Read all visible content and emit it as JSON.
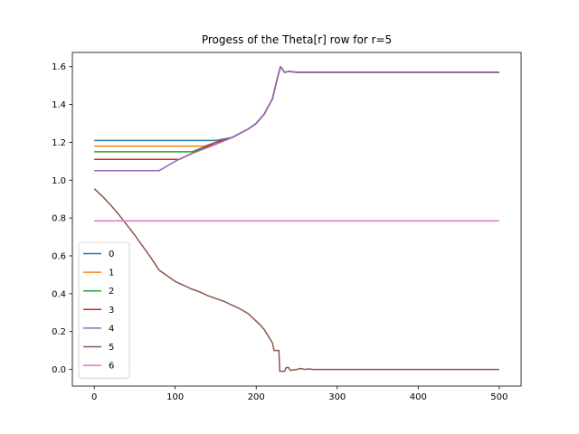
{
  "chart_data": {
    "type": "line",
    "title": "Progess of the Theta[r] row for r=5",
    "xlabel": "",
    "ylabel": "",
    "xlim": [
      -27,
      527
    ],
    "ylim": [
      -0.088,
      1.675
    ],
    "xticks": [
      0,
      100,
      200,
      300,
      400,
      500
    ],
    "yticks": [
      0.0,
      0.2,
      0.4,
      0.6,
      0.8,
      1.0,
      1.2,
      1.4,
      1.6
    ],
    "xtick_labels": [
      "0",
      "100",
      "200",
      "300",
      "400",
      "500"
    ],
    "ytick_labels": [
      "0.0",
      "0.2",
      "0.4",
      "0.6",
      "0.8",
      "1.0",
      "1.2",
      "1.4",
      "1.6"
    ],
    "grid": false,
    "legend_position": "lower-left",
    "series": [
      {
        "name": "0",
        "color": "#1f77b4",
        "x": [
          0,
          150,
          170,
          190,
          200,
          210,
          220,
          225,
          228,
          230,
          235,
          240,
          250,
          260,
          300,
          500
        ],
        "y": [
          1.21,
          1.21,
          1.225,
          1.27,
          1.3,
          1.35,
          1.43,
          1.52,
          1.57,
          1.6,
          1.57,
          1.575,
          1.57,
          1.57,
          1.57,
          1.57
        ]
      },
      {
        "name": "1",
        "color": "#ff7f0e",
        "x": [
          0,
          136,
          150,
          170,
          190,
          200,
          210,
          220,
          225,
          228,
          230,
          235,
          240,
          250,
          260,
          300,
          500
        ],
        "y": [
          1.18,
          1.18,
          1.2,
          1.225,
          1.27,
          1.3,
          1.35,
          1.43,
          1.52,
          1.57,
          1.6,
          1.57,
          1.575,
          1.57,
          1.57,
          1.57,
          1.57
        ]
      },
      {
        "name": "2",
        "color": "#2ca02c",
        "x": [
          0,
          121,
          150,
          170,
          190,
          200,
          210,
          220,
          225,
          228,
          230,
          235,
          240,
          250,
          260,
          300,
          500
        ],
        "y": [
          1.15,
          1.15,
          1.2,
          1.225,
          1.27,
          1.3,
          1.35,
          1.43,
          1.52,
          1.57,
          1.6,
          1.57,
          1.575,
          1.57,
          1.57,
          1.57,
          1.57
        ]
      },
      {
        "name": "3",
        "color": "#d62728",
        "x": [
          0,
          105,
          120,
          150,
          170,
          190,
          200,
          210,
          220,
          225,
          228,
          230,
          235,
          240,
          250,
          260,
          300,
          500
        ],
        "y": [
          1.11,
          1.11,
          1.14,
          1.2,
          1.225,
          1.27,
          1.3,
          1.35,
          1.43,
          1.52,
          1.57,
          1.6,
          1.57,
          1.575,
          1.57,
          1.57,
          1.57,
          1.57
        ]
      },
      {
        "name": "4",
        "color": "#9467bd",
        "x": [
          0,
          80,
          100,
          120,
          150,
          170,
          190,
          200,
          210,
          220,
          225,
          228,
          230,
          235,
          240,
          250,
          260,
          300,
          500
        ],
        "y": [
          1.05,
          1.05,
          1.1,
          1.14,
          1.19,
          1.225,
          1.27,
          1.3,
          1.35,
          1.43,
          1.52,
          1.57,
          1.6,
          1.57,
          1.575,
          1.57,
          1.57,
          1.57,
          1.57
        ]
      },
      {
        "name": "5",
        "color": "#8c564b",
        "x": [
          0,
          10,
          20,
          30,
          40,
          50,
          60,
          70,
          80,
          90,
          100,
          110,
          120,
          130,
          140,
          150,
          160,
          170,
          180,
          190,
          195,
          200,
          205,
          210,
          215,
          220,
          222,
          225,
          228,
          229,
          235,
          237,
          240,
          242,
          250,
          255,
          260,
          265,
          270,
          300,
          500
        ],
        "y": [
          0.955,
          0.915,
          0.87,
          0.82,
          0.765,
          0.71,
          0.65,
          0.59,
          0.525,
          0.495,
          0.465,
          0.445,
          0.425,
          0.41,
          0.39,
          0.375,
          0.36,
          0.34,
          0.32,
          0.295,
          0.275,
          0.255,
          0.235,
          0.21,
          0.175,
          0.14,
          0.1,
          0.1,
          0.1,
          -0.01,
          -0.01,
          0.01,
          0.01,
          -0.005,
          0.0,
          0.005,
          0.0,
          0.003,
          0.0,
          0.0,
          0.0
        ]
      },
      {
        "name": "6",
        "color": "#e377c2",
        "x": [
          0,
          500
        ],
        "y": [
          0.785,
          0.785
        ]
      }
    ]
  }
}
